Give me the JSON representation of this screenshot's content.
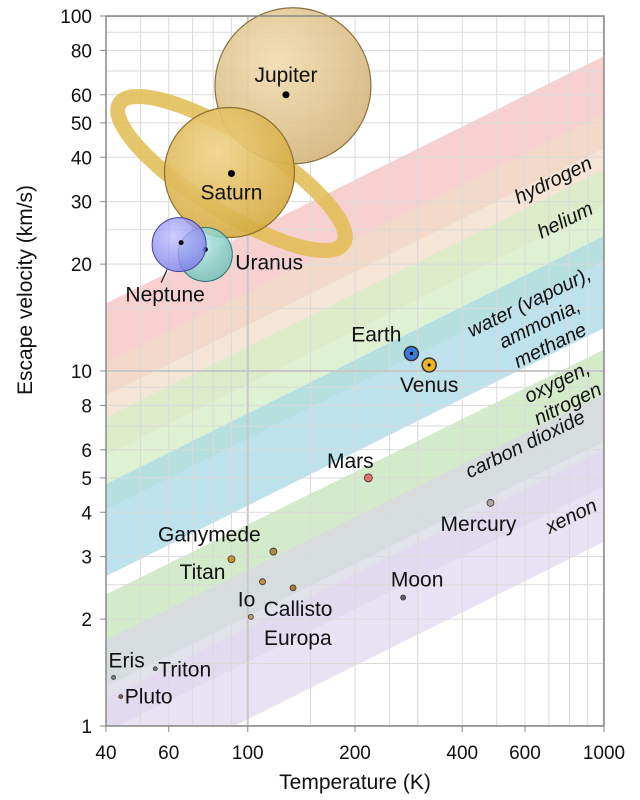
{
  "chart_data": {
    "type": "scatter",
    "xlabel": "Temperature (K)",
    "ylabel": "Escape velocity (km/s)",
    "x_scale": "log",
    "y_scale": "log",
    "xlim": [
      40,
      1000
    ],
    "ylim": [
      1,
      100
    ],
    "grid": true,
    "x_ticks": [
      {
        "value": 40,
        "label": "40"
      },
      {
        "value": 60,
        "label": "60"
      },
      {
        "value": 100,
        "label": "100"
      },
      {
        "value": 200,
        "label": "200"
      },
      {
        "value": 400,
        "label": "400"
      },
      {
        "value": 600,
        "label": "600"
      },
      {
        "value": 1000,
        "label": "1000"
      }
    ],
    "y_ticks": [
      {
        "value": 1,
        "label": "1"
      },
      {
        "value": 2,
        "label": "2"
      },
      {
        "value": 3,
        "label": "3"
      },
      {
        "value": 4,
        "label": "4"
      },
      {
        "value": 5,
        "label": "5"
      },
      {
        "value": 6,
        "label": "6"
      },
      {
        "value": 8,
        "label": "8"
      },
      {
        "value": 10,
        "label": "10"
      },
      {
        "value": 20,
        "label": "20"
      },
      {
        "value": 30,
        "label": "30"
      },
      {
        "value": 40,
        "label": "40"
      },
      {
        "value": 50,
        "label": "50"
      },
      {
        "value": 60,
        "label": "60"
      },
      {
        "value": 80,
        "label": "80"
      },
      {
        "value": 100,
        "label": "100"
      }
    ],
    "gas_bands": [
      {
        "label": "hydrogen",
        "color": "#f4c0c0",
        "y_at_40K": 15.5,
        "y_at_1000K": 77
      },
      {
        "label": "helium",
        "color": "#f2dcc8",
        "y_at_40K": 10.5,
        "y_at_1000K": 53
      },
      {
        "label": "water (vapour), ammonia, methane",
        "color": "#d4ecc4",
        "y_at_40K": 7.4,
        "y_at_1000K": 37
      },
      {
        "label": "oxygen, nitrogen",
        "color": "#a8d8e4",
        "y_at_40K": 4.8,
        "y_at_1000K": 24
      },
      {
        "label": "carbon dioxide",
        "color": "#c4e4b8",
        "y_at_40K": 2.35,
        "y_at_1000K": 11.5
      },
      {
        "label": "xenon",
        "color": "#d8d8e4",
        "y_at_40K": 1.75,
        "y_at_1000K": 8.6
      },
      {
        "label": "",
        "color": "#e2d8f0",
        "y_at_40K": 1.2,
        "y_at_1000K": 6.0
      }
    ],
    "bodies": [
      {
        "name": "Jupiter",
        "temperature": 128,
        "escape_velocity": 60,
        "color": "#dcc08c",
        "size": "large",
        "label_pos": "above"
      },
      {
        "name": "Saturn",
        "temperature": 90,
        "escape_velocity": 36,
        "color": "#e2c064",
        "size": "large",
        "ring": true,
        "label_pos": "below"
      },
      {
        "name": "Uranus",
        "temperature": 76,
        "escape_velocity": 22,
        "color": "#80d0c8",
        "size": "medium",
        "label_pos": "right"
      },
      {
        "name": "Neptune",
        "temperature": 65,
        "escape_velocity": 23,
        "color": "#9090f0",
        "size": "medium",
        "label_pos": "below"
      },
      {
        "name": "Earth",
        "temperature": 288,
        "escape_velocity": 11.2,
        "color": "#3a7ad8",
        "size": "small",
        "label_pos": "upper-left"
      },
      {
        "name": "Venus",
        "temperature": 323,
        "escape_velocity": 10.4,
        "color": "#f0b428",
        "size": "small",
        "label_pos": "below"
      },
      {
        "name": "Mars",
        "temperature": 218,
        "escape_velocity": 5.0,
        "color": "#e27070",
        "size": "tiny",
        "label_pos": "above"
      },
      {
        "name": "Mercury",
        "temperature": 480,
        "escape_velocity": 4.25,
        "color": "#b0a8a0",
        "size": "tiny",
        "label_pos": "below"
      },
      {
        "name": "Ganymede",
        "temperature": 118,
        "escape_velocity": 3.1,
        "color": "#b08848",
        "size": "tiny",
        "label_pos": "above"
      },
      {
        "name": "Titan",
        "temperature": 90,
        "escape_velocity": 2.95,
        "color": "#d09030",
        "size": "tiny",
        "label_pos": "left"
      },
      {
        "name": "Io",
        "temperature": 110,
        "escape_velocity": 2.55,
        "color": "#c09040",
        "size": "tiny",
        "label_pos": "below-left"
      },
      {
        "name": "Callisto",
        "temperature": 134,
        "escape_velocity": 2.45,
        "color": "#b07838",
        "size": "tiny",
        "label_pos": "below"
      },
      {
        "name": "Europa",
        "temperature": 102,
        "escape_velocity": 2.03,
        "color": "#c0a070",
        "size": "tiny",
        "label_pos": "below"
      },
      {
        "name": "Moon",
        "temperature": 273,
        "escape_velocity": 2.3,
        "color": "#606070",
        "size": "tiny",
        "label_pos": "above"
      },
      {
        "name": "Eris",
        "temperature": 42,
        "escape_velocity": 1.37,
        "color": "#808080",
        "size": "tiny",
        "label_pos": "above"
      },
      {
        "name": "Triton",
        "temperature": 55,
        "escape_velocity": 1.45,
        "color": "#808080",
        "size": "tiny",
        "label_pos": "right"
      },
      {
        "name": "Pluto",
        "temperature": 44,
        "escape_velocity": 1.21,
        "color": "#806050",
        "size": "tiny",
        "label_pos": "right"
      }
    ]
  }
}
